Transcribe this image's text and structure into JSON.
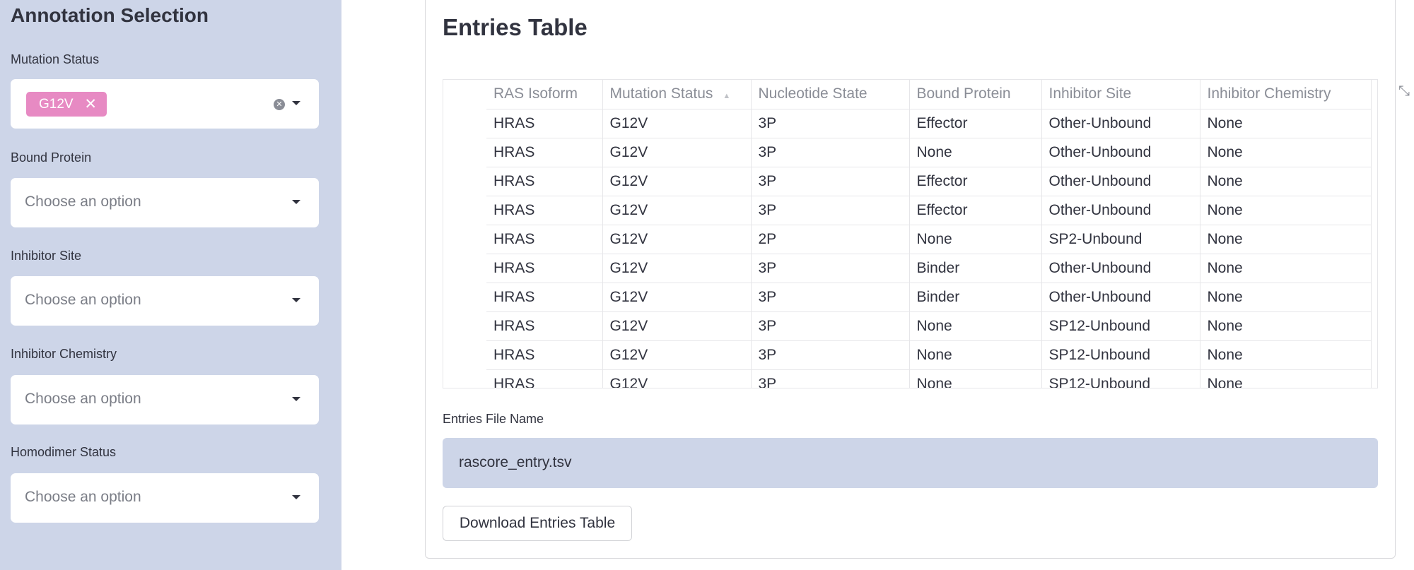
{
  "sidebar": {
    "title": "Annotation Selection",
    "filters": [
      {
        "label": "Mutation Status",
        "selected": [
          "G12V"
        ]
      },
      {
        "label": "Bound Protein",
        "placeholder": "Choose an option"
      },
      {
        "label": "Inhibitor Site",
        "placeholder": "Choose an option"
      },
      {
        "label": "Inhibitor Chemistry",
        "placeholder": "Choose an option"
      },
      {
        "label": "Homodimer Status",
        "placeholder": "Choose an option"
      }
    ],
    "chip_color": "#e78ac3",
    "background": "#cdd5e8"
  },
  "main": {
    "title": "Entries Table",
    "table": {
      "columns": [
        "RAS Isoform",
        "Mutation Status",
        "Nucleotide State",
        "Bound Protein",
        "Inhibitor Site",
        "Inhibitor Chemistry"
      ],
      "sorted_column": "Mutation Status",
      "rows": [
        [
          "HRAS",
          "G12V",
          "3P",
          "Effector",
          "Other-Unbound",
          "None"
        ],
        [
          "HRAS",
          "G12V",
          "3P",
          "None",
          "Other-Unbound",
          "None"
        ],
        [
          "HRAS",
          "G12V",
          "3P",
          "Effector",
          "Other-Unbound",
          "None"
        ],
        [
          "HRAS",
          "G12V",
          "3P",
          "Effector",
          "Other-Unbound",
          "None"
        ],
        [
          "HRAS",
          "G12V",
          "2P",
          "None",
          "SP2-Unbound",
          "None"
        ],
        [
          "HRAS",
          "G12V",
          "3P",
          "Binder",
          "Other-Unbound",
          "None"
        ],
        [
          "HRAS",
          "G12V",
          "3P",
          "Binder",
          "Other-Unbound",
          "None"
        ],
        [
          "HRAS",
          "G12V",
          "3P",
          "None",
          "SP12-Unbound",
          "None"
        ],
        [
          "HRAS",
          "G12V",
          "3P",
          "None",
          "SP12-Unbound",
          "None"
        ],
        [
          "HRAS",
          "G12V",
          "3P",
          "None",
          "SP12-Unbound",
          "None"
        ]
      ]
    },
    "file_name_label": "Entries File Name",
    "file_name_value": "rascore_entry.tsv",
    "download_label": "Download Entries Table"
  }
}
